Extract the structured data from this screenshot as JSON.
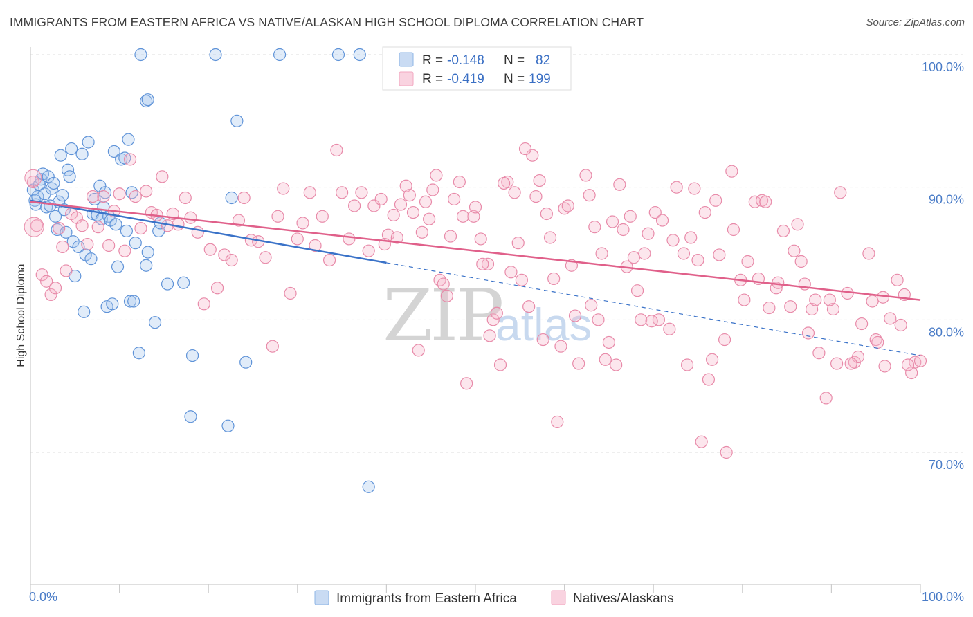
{
  "title": "IMMIGRANTS FROM EASTERN AFRICA VS NATIVE/ALASKAN HIGH SCHOOL DIPLOMA CORRELATION CHART",
  "source": "Source: ZipAtlas.com",
  "watermark": {
    "zip": "ZIP",
    "atlas": "atlas"
  },
  "legend": {
    "r_label": "R =",
    "n_label": "N =",
    "rows": [
      {
        "r": "-0.148",
        "n": "82",
        "color": "#8db4e6"
      },
      {
        "r": "-0.419",
        "n": "199",
        "color": "#f2a7c0"
      }
    ]
  },
  "bottom_legend": [
    {
      "label": "Immigrants from Eastern Africa",
      "color": "#8db4e6"
    },
    {
      "label": "Natives/Alaskans",
      "color": "#f2a7c0"
    }
  ],
  "chart_data": {
    "type": "scatter",
    "title": "IMMIGRANTS FROM EASTERN AFRICA VS NATIVE/ALASKAN HIGH SCHOOL DIPLOMA CORRELATION CHART",
    "xlabel": "",
    "ylabel": "High School Diploma",
    "xlim": [
      0,
      100
    ],
    "ylim": [
      60,
      103
    ],
    "x_tick_labels": [
      "0.0%",
      "100.0%"
    ],
    "y_ticks": [
      70,
      80,
      90,
      100
    ],
    "y_tick_labels": [
      "70.0%",
      "80.0%",
      "90.0%",
      "100.0%"
    ],
    "grid": true,
    "legend_position": "top-center",
    "series": [
      {
        "name": "Immigrants from Eastern Africa",
        "color": "#8db4e6",
        "line_color": "#3a72c8",
        "trend": {
          "x": [
            0,
            40
          ],
          "y": [
            89.0,
            84.3
          ],
          "extend_to_x": 100,
          "extend_y": 77.3
        },
        "points": [
          [
            0.3,
            89.8
          ],
          [
            0.5,
            89.0
          ],
          [
            0.6,
            88.7
          ],
          [
            0.8,
            89.3
          ],
          [
            1.0,
            90.2
          ],
          [
            1.2,
            90.6
          ],
          [
            1.4,
            91.0
          ],
          [
            1.6,
            89.5
          ],
          [
            1.8,
            88.5
          ],
          [
            2.0,
            90.8
          ],
          [
            2.2,
            88.6
          ],
          [
            2.4,
            89.9
          ],
          [
            2.6,
            90.3
          ],
          [
            2.8,
            87.8
          ],
          [
            3.0,
            86.8
          ],
          [
            3.2,
            88.9
          ],
          [
            3.4,
            92.4
          ],
          [
            3.6,
            89.4
          ],
          [
            3.8,
            88.3
          ],
          [
            4.0,
            86.6
          ],
          [
            4.2,
            91.3
          ],
          [
            4.4,
            90.8
          ],
          [
            4.6,
            92.9
          ],
          [
            4.8,
            85.9
          ],
          [
            5.0,
            83.3
          ],
          [
            5.4,
            85.5
          ],
          [
            5.8,
            92.5
          ],
          [
            6.0,
            80.6
          ],
          [
            6.2,
            84.9
          ],
          [
            6.5,
            93.4
          ],
          [
            6.8,
            84.6
          ],
          [
            7.0,
            88.0
          ],
          [
            7.2,
            89.1
          ],
          [
            7.5,
            87.9
          ],
          [
            7.8,
            90.1
          ],
          [
            8.0,
            87.6
          ],
          [
            8.2,
            88.5
          ],
          [
            8.4,
            89.6
          ],
          [
            8.6,
            81.0
          ],
          [
            8.8,
            87.8
          ],
          [
            9.0,
            87.5
          ],
          [
            9.2,
            81.2
          ],
          [
            9.4,
            92.7
          ],
          [
            9.6,
            87.2
          ],
          [
            9.8,
            84.0
          ],
          [
            10.2,
            92.1
          ],
          [
            10.6,
            92.2
          ],
          [
            10.8,
            86.7
          ],
          [
            11.0,
            93.6
          ],
          [
            11.2,
            81.4
          ],
          [
            11.4,
            89.6
          ],
          [
            11.6,
            81.4
          ],
          [
            11.8,
            85.8
          ],
          [
            12.2,
            77.5
          ],
          [
            12.4,
            100.0
          ],
          [
            13.0,
            96.5
          ],
          [
            13.2,
            96.6
          ],
          [
            13.0,
            84.1
          ],
          [
            13.2,
            85.1
          ],
          [
            14.0,
            79.8
          ],
          [
            14.4,
            86.7
          ],
          [
            14.6,
            87.3
          ],
          [
            15.4,
            82.7
          ],
          [
            17.2,
            82.8
          ],
          [
            18.0,
            72.7
          ],
          [
            18.2,
            77.3
          ],
          [
            20.8,
            100.0
          ],
          [
            22.6,
            89.2
          ],
          [
            23.2,
            95.0
          ],
          [
            22.2,
            72.0
          ],
          [
            24.2,
            76.8
          ],
          [
            28.0,
            100.0
          ],
          [
            34.6,
            100.0
          ],
          [
            37.0,
            100.0
          ],
          [
            38.0,
            67.4
          ]
        ]
      },
      {
        "name": "Natives/Alaskans",
        "color": "#f2a7c0",
        "line_color": "#e0608a",
        "trend": {
          "x": [
            0,
            100
          ],
          "y": [
            88.9,
            81.5
          ]
        },
        "points": [
          [
            0.3,
            90.4
          ],
          [
            0.7,
            87.1
          ],
          [
            1.3,
            83.4
          ],
          [
            1.8,
            82.9
          ],
          [
            2.3,
            81.9
          ],
          [
            2.8,
            82.4
          ],
          [
            3.2,
            86.9
          ],
          [
            3.6,
            85.5
          ],
          [
            4.0,
            83.7
          ],
          [
            4.6,
            88.0
          ],
          [
            5.2,
            87.7
          ],
          [
            5.8,
            87.1
          ],
          [
            6.4,
            85.7
          ],
          [
            7.0,
            89.3
          ],
          [
            7.6,
            87.0
          ],
          [
            8.2,
            89.3
          ],
          [
            8.8,
            85.6
          ],
          [
            9.4,
            88.2
          ],
          [
            10.0,
            89.5
          ],
          [
            10.6,
            85.2
          ],
          [
            11.2,
            92.1
          ],
          [
            11.8,
            89.3
          ],
          [
            12.4,
            86.9
          ],
          [
            13.0,
            89.7
          ],
          [
            13.6,
            88.1
          ],
          [
            14.2,
            87.9
          ],
          [
            14.8,
            90.8
          ],
          [
            15.4,
            87.1
          ],
          [
            16.0,
            88.0
          ],
          [
            16.6,
            87.2
          ],
          [
            17.4,
            89.2
          ],
          [
            18.0,
            87.7
          ],
          [
            18.8,
            86.6
          ],
          [
            19.5,
            81.2
          ],
          [
            20.2,
            85.3
          ],
          [
            21.0,
            82.4
          ],
          [
            21.8,
            84.9
          ],
          [
            22.6,
            84.5
          ],
          [
            23.4,
            87.5
          ],
          [
            24.0,
            89.2
          ],
          [
            24.8,
            86.0
          ],
          [
            25.6,
            85.9
          ],
          [
            26.4,
            84.7
          ],
          [
            27.2,
            78.0
          ],
          [
            27.8,
            87.8
          ],
          [
            28.4,
            89.9
          ],
          [
            29.2,
            82.0
          ],
          [
            30.0,
            86.1
          ],
          [
            30.6,
            87.3
          ],
          [
            31.4,
            89.6
          ],
          [
            32.0,
            85.6
          ],
          [
            32.8,
            87.8
          ],
          [
            33.6,
            84.5
          ],
          [
            34.4,
            92.8
          ],
          [
            35.0,
            89.6
          ],
          [
            35.8,
            86.1
          ],
          [
            36.4,
            88.6
          ],
          [
            37.2,
            89.6
          ],
          [
            38.0,
            85.2
          ],
          [
            38.6,
            88.6
          ],
          [
            39.4,
            89.1
          ],
          [
            40.2,
            86.4
          ],
          [
            40.8,
            87.9
          ],
          [
            41.6,
            88.7
          ],
          [
            42.2,
            90.1
          ],
          [
            43.0,
            88.1
          ],
          [
            43.6,
            77.7
          ],
          [
            44.4,
            88.9
          ],
          [
            45.2,
            89.8
          ],
          [
            46.0,
            83.0
          ],
          [
            46.8,
            81.8
          ],
          [
            47.6,
            89.1
          ],
          [
            48.2,
            90.4
          ],
          [
            49.0,
            75.2
          ],
          [
            49.8,
            87.8
          ],
          [
            50.6,
            86.1
          ],
          [
            51.4,
            84.2
          ],
          [
            52.0,
            80.0
          ],
          [
            52.8,
            76.6
          ],
          [
            53.6,
            90.4
          ],
          [
            54.4,
            89.6
          ],
          [
            55.2,
            83.0
          ],
          [
            56.0,
            81.0
          ],
          [
            56.8,
            89.3
          ],
          [
            57.6,
            78.5
          ],
          [
            58.4,
            86.2
          ],
          [
            59.2,
            72.3
          ],
          [
            60.0,
            88.4
          ],
          [
            60.8,
            84.1
          ],
          [
            61.6,
            76.7
          ],
          [
            62.4,
            90.9
          ],
          [
            63.0,
            81.1
          ],
          [
            63.8,
            80.0
          ],
          [
            64.6,
            77.0
          ],
          [
            65.4,
            87.4
          ],
          [
            66.2,
            90.2
          ],
          [
            67.0,
            84.0
          ],
          [
            67.8,
            84.7
          ],
          [
            68.6,
            80.0
          ],
          [
            69.4,
            86.5
          ],
          [
            70.2,
            88.1
          ],
          [
            71.0,
            87.5
          ],
          [
            71.8,
            79.3
          ],
          [
            72.6,
            90.0
          ],
          [
            73.4,
            85.0
          ],
          [
            74.2,
            86.2
          ],
          [
            75.0,
            84.5
          ],
          [
            75.8,
            88.1
          ],
          [
            76.6,
            77.0
          ],
          [
            77.4,
            84.9
          ],
          [
            78.2,
            70.0
          ],
          [
            79.0,
            86.8
          ],
          [
            79.8,
            83.0
          ],
          [
            80.6,
            84.4
          ],
          [
            81.4,
            88.9
          ],
          [
            82.2,
            89.0
          ],
          [
            83.0,
            80.9
          ],
          [
            83.8,
            82.4
          ],
          [
            84.6,
            86.7
          ],
          [
            85.4,
            81.0
          ],
          [
            86.2,
            87.2
          ],
          [
            87.0,
            82.7
          ],
          [
            87.8,
            80.8
          ],
          [
            88.6,
            77.5
          ],
          [
            89.4,
            74.1
          ],
          [
            90.2,
            80.8
          ],
          [
            91.0,
            89.6
          ],
          [
            91.8,
            82.0
          ],
          [
            92.6,
            76.8
          ],
          [
            93.4,
            79.7
          ],
          [
            94.2,
            85.0
          ],
          [
            95.0,
            78.5
          ],
          [
            95.8,
            81.7
          ],
          [
            96.6,
            80.1
          ],
          [
            97.4,
            83.0
          ],
          [
            98.2,
            81.9
          ],
          [
            99.0,
            76.0
          ],
          [
            99.4,
            76.8
          ],
          [
            98.6,
            76.6
          ],
          [
            100.0,
            76.9
          ],
          [
            97.8,
            79.6
          ],
          [
            96.0,
            76.5
          ],
          [
            95.2,
            78.3
          ],
          [
            94.6,
            81.4
          ],
          [
            93.0,
            77.2
          ],
          [
            92.2,
            76.7
          ],
          [
            90.6,
            76.7
          ],
          [
            89.8,
            81.5
          ],
          [
            88.2,
            81.5
          ],
          [
            87.4,
            79.0
          ],
          [
            86.6,
            84.4
          ],
          [
            85.8,
            85.2
          ],
          [
            84.0,
            82.8
          ],
          [
            82.6,
            88.9
          ],
          [
            81.8,
            83.1
          ],
          [
            80.2,
            81.5
          ],
          [
            78.8,
            91.2
          ],
          [
            78.0,
            78.5
          ],
          [
            77.0,
            89.0
          ],
          [
            76.2,
            75.5
          ],
          [
            75.4,
            70.8
          ],
          [
            74.6,
            89.9
          ],
          [
            73.8,
            76.6
          ],
          [
            72.2,
            86.0
          ],
          [
            70.6,
            80.0
          ],
          [
            69.8,
            79.9
          ],
          [
            69.0,
            85.0
          ],
          [
            68.2,
            82.2
          ],
          [
            67.4,
            87.8
          ],
          [
            66.6,
            86.8
          ],
          [
            65.8,
            76.6
          ],
          [
            65.0,
            78.3
          ],
          [
            64.2,
            85.0
          ],
          [
            63.4,
            87.0
          ],
          [
            62.8,
            89.4
          ],
          [
            61.2,
            80.3
          ],
          [
            60.4,
            88.6
          ],
          [
            59.6,
            78.0
          ],
          [
            58.8,
            83.1
          ],
          [
            58.0,
            88.0
          ],
          [
            57.2,
            90.5
          ],
          [
            56.4,
            92.4
          ],
          [
            55.6,
            92.9
          ],
          [
            54.8,
            85.8
          ],
          [
            54.0,
            83.6
          ],
          [
            53.2,
            90.3
          ],
          [
            52.4,
            80.5
          ],
          [
            51.6,
            78.8
          ],
          [
            50.8,
            84.2
          ],
          [
            50.0,
            88.5
          ],
          [
            48.6,
            87.8
          ],
          [
            47.2,
            86.3
          ],
          [
            46.4,
            82.7
          ],
          [
            45.6,
            90.9
          ],
          [
            44.8,
            87.6
          ],
          [
            44.0,
            86.6
          ],
          [
            42.6,
            89.4
          ],
          [
            41.2,
            86.2
          ],
          [
            39.8,
            85.7
          ]
        ]
      }
    ]
  }
}
